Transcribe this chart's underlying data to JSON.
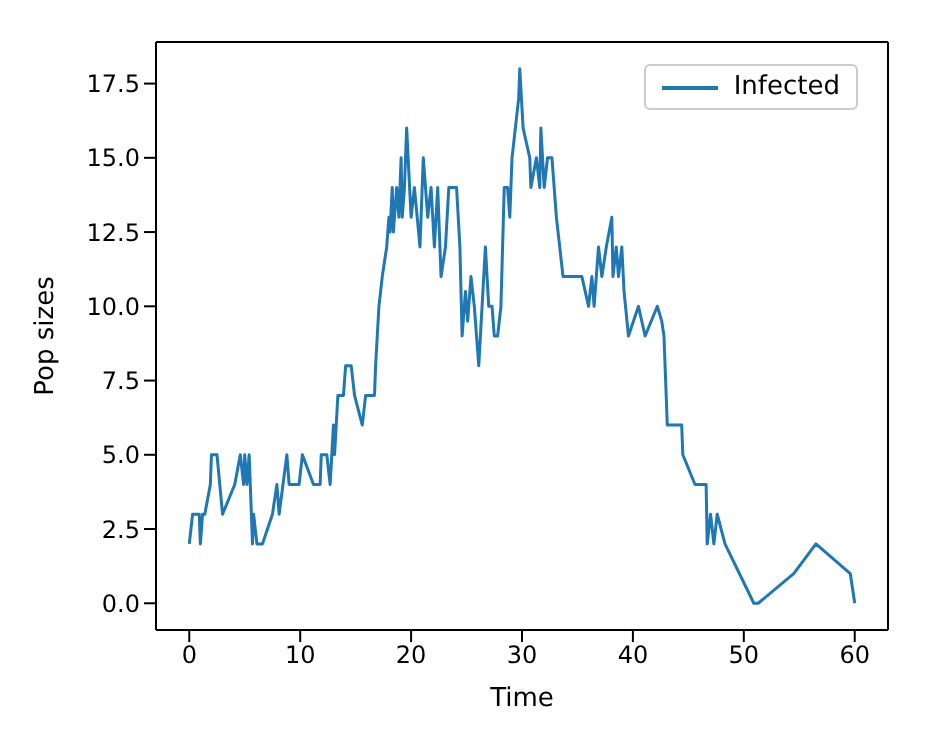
{
  "chart_data": {
    "type": "line",
    "xlabel": "Time",
    "ylabel": "Pop sizes",
    "series": [
      {
        "name": "Infected",
        "color": "#1f77b4",
        "x": [
          0,
          0.3,
          0.9,
          1.0,
          1.2,
          1.4,
          1.9,
          2.0,
          2.5,
          3.0,
          4.1,
          4.6,
          4.9,
          5.0,
          5.2,
          5.4,
          5.7,
          5.8,
          6.1,
          6.6,
          7.5,
          7.9,
          8.1,
          8.8,
          9.0,
          9.9,
          10.2,
          11.2,
          11.8,
          11.9,
          12.4,
          12.7,
          13.0,
          13.1,
          13.4,
          13.9,
          14.1,
          14.6,
          14.9,
          15.6,
          15.9,
          16.7,
          16.8,
          17.1,
          17.4,
          17.8,
          18.0,
          18.1,
          18.3,
          18.4,
          18.7,
          18.9,
          19.1,
          19.2,
          19.4,
          19.6,
          20.0,
          20.3,
          20.8,
          21.1,
          21.5,
          21.8,
          22.1,
          22.4,
          22.7,
          23.1,
          23.4,
          24.1,
          24.4,
          24.6,
          24.9,
          25.1,
          25.4,
          25.7,
          26.1,
          26.7,
          27.0,
          27.3,
          27.5,
          27.8,
          28.1,
          28.4,
          28.7,
          28.9,
          29.1,
          29.4,
          29.7,
          29.8,
          30.1,
          30.7,
          30.8,
          31.3,
          31.6,
          31.7,
          32.0,
          32.3,
          32.7,
          33.1,
          33.4,
          33.7,
          35.4,
          36.0,
          36.3,
          36.5,
          36.9,
          37.2,
          37.6,
          38.1,
          38.2,
          38.5,
          38.7,
          39.0,
          39.2,
          39.6,
          40.5,
          41.1,
          42.2,
          42.6,
          42.8,
          43.1,
          44.4,
          44.5,
          45.6,
          46.6,
          46.7,
          47.0,
          47.3,
          47.6,
          48.3,
          50.9,
          51.3,
          54.5,
          56.5,
          59.6,
          60
        ],
        "values": [
          2,
          3,
          3,
          2,
          3,
          3,
          4,
          5,
          5,
          3,
          4,
          5,
          4,
          5,
          4,
          5,
          2,
          3,
          2,
          2,
          3,
          4,
          3,
          5,
          4,
          4,
          5,
          4,
          4,
          5,
          5,
          4,
          6,
          5,
          7,
          7,
          8,
          8,
          7,
          6,
          7,
          7,
          8,
          10,
          11,
          12,
          13,
          12.5,
          14,
          12.5,
          14,
          13,
          15,
          13,
          14,
          16,
          13,
          14,
          12,
          15,
          13,
          14,
          12,
          14,
          11,
          12,
          14,
          14,
          12,
          9,
          10.5,
          9.5,
          11,
          10,
          8,
          12,
          10,
          10,
          9,
          9,
          10,
          14,
          14,
          13,
          15,
          16,
          17,
          18,
          16,
          15,
          14,
          15,
          14,
          16,
          14,
          15,
          15,
          13,
          12,
          11,
          11,
          10,
          11,
          10,
          12,
          11,
          12,
          13,
          11,
          12,
          11,
          12,
          10.5,
          9,
          10,
          9,
          10,
          9.5,
          9,
          6,
          6,
          5,
          4,
          4,
          2,
          3,
          2,
          3,
          2,
          0,
          0,
          1,
          2,
          1,
          0
        ]
      }
    ],
    "xlim": [
      -3,
      63
    ],
    "xticks": [
      0,
      10,
      20,
      30,
      40,
      50,
      60
    ],
    "ylim": [
      -0.9,
      18.9
    ],
    "yticks": [
      {
        "value": 0,
        "label": "0.0"
      },
      {
        "value": 2.5,
        "label": "2.5"
      },
      {
        "value": 5,
        "label": "5.0"
      },
      {
        "value": 7.5,
        "label": "7.5"
      },
      {
        "value": 10,
        "label": "10.0"
      },
      {
        "value": 12.5,
        "label": "12.5"
      },
      {
        "value": 15,
        "label": "15.0"
      },
      {
        "value": 17.5,
        "label": "17.5"
      }
    ],
    "legend": "top right"
  }
}
